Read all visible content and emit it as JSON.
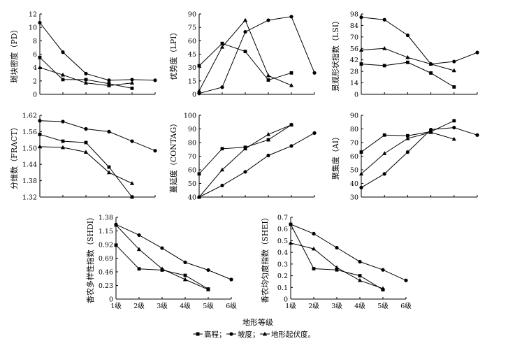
{
  "chart_data": [
    {
      "id": "pd",
      "type": "line",
      "ylabel": "斑块密度（PD）",
      "ylim": [
        0,
        12
      ],
      "yticks": [
        0,
        2,
        4,
        6,
        8,
        10,
        12
      ],
      "ytick_labels": [
        "0",
        "2",
        "4",
        "6",
        "8",
        "10",
        "12"
      ],
      "series": [
        {
          "name": "高程",
          "x": [
            1,
            2,
            3,
            4,
            5
          ],
          "values": [
            5.5,
            2.2,
            2.2,
            1.6,
            0.9
          ]
        },
        {
          "name": "坡度",
          "x": [
            1,
            2,
            3,
            4,
            5,
            6
          ],
          "values": [
            10.7,
            6.3,
            3.1,
            2.1,
            2.2,
            2.1
          ]
        },
        {
          "name": "地形起伏度",
          "x": [
            1,
            2,
            3,
            4,
            5
          ],
          "values": [
            4.0,
            2.9,
            1.7,
            1.3,
            1.7
          ]
        }
      ]
    },
    {
      "id": "lpi",
      "type": "line",
      "ylabel": "优势度（LPI）",
      "ylim": [
        0,
        90
      ],
      "yticks": [
        0,
        15,
        30,
        45,
        60,
        75,
        90
      ],
      "ytick_labels": [
        "0",
        "15",
        "30",
        "45",
        "60",
        "75",
        "90"
      ],
      "series": [
        {
          "name": "高程",
          "x": [
            1,
            2,
            3,
            4,
            5
          ],
          "values": [
            32,
            57,
            48,
            16,
            24
          ]
        },
        {
          "name": "坡度",
          "x": [
            1,
            2,
            3,
            4,
            5,
            6
          ],
          "values": [
            1,
            8,
            70,
            83,
            87,
            24
          ]
        },
        {
          "name": "地形起伏度",
          "x": [
            1,
            2,
            3,
            4,
            5
          ],
          "values": [
            4,
            53,
            83,
            21,
            10
          ]
        }
      ]
    },
    {
      "id": "lsi",
      "type": "line",
      "ylabel": "景观形状指数（LSI）",
      "ylim": [
        0,
        98
      ],
      "yticks": [
        0,
        14,
        28,
        42,
        56,
        70,
        84,
        98
      ],
      "ytick_labels": [
        "0",
        "14",
        "28",
        "42",
        "56",
        "70",
        "84",
        "98"
      ],
      "series": [
        {
          "name": "高程",
          "x": [
            1,
            2,
            3,
            4,
            5
          ],
          "values": [
            37,
            35,
            39,
            26,
            9
          ]
        },
        {
          "name": "坡度",
          "x": [
            1,
            2,
            3,
            4,
            5,
            6
          ],
          "values": [
            94,
            91,
            72,
            37,
            40,
            51
          ]
        },
        {
          "name": "地形起伏度",
          "x": [
            1,
            2,
            3,
            4,
            5
          ],
          "values": [
            54,
            56,
            45,
            37,
            29
          ]
        }
      ]
    },
    {
      "id": "fract",
      "type": "line",
      "ylabel": "分维数（FRACT）",
      "ylim": [
        1.32,
        1.62
      ],
      "yticks": [
        1.32,
        1.38,
        1.44,
        1.5,
        1.56,
        1.62
      ],
      "ytick_labels": [
        "1.32",
        "1.38",
        "1.44",
        "1.50",
        "1.56",
        "1.62"
      ],
      "series": [
        {
          "name": "高程",
          "x": [
            1,
            2,
            3,
            4,
            5
          ],
          "values": [
            1.55,
            1.525,
            1.52,
            1.43,
            1.32
          ]
        },
        {
          "name": "坡度",
          "x": [
            1,
            2,
            3,
            4,
            5,
            6
          ],
          "values": [
            1.6,
            1.597,
            1.57,
            1.56,
            1.525,
            1.49
          ]
        },
        {
          "name": "地形起伏度",
          "x": [
            1,
            2,
            3,
            4,
            5
          ],
          "values": [
            1.505,
            1.502,
            1.485,
            1.41,
            1.37
          ]
        }
      ]
    },
    {
      "id": "contag",
      "type": "line",
      "ylabel": "蔓延度（CONTAG）",
      "ylim": [
        40,
        100
      ],
      "yticks": [
        40,
        50,
        60,
        70,
        80,
        90,
        100
      ],
      "ytick_labels": [
        "40",
        "50",
        "60",
        "70",
        "80",
        "90",
        "100"
      ],
      "series": [
        {
          "name": "高程",
          "x": [
            1,
            2,
            3,
            4,
            5
          ],
          "values": [
            57,
            75.5,
            76.5,
            82,
            93
          ]
        },
        {
          "name": "坡度",
          "x": [
            1,
            2,
            3,
            4,
            5,
            6
          ],
          "values": [
            40,
            48.5,
            58.5,
            70.5,
            77.5,
            87
          ]
        },
        {
          "name": "地形起伏度",
          "x": [
            1,
            2,
            3,
            4,
            5
          ],
          "values": [
            40,
            60,
            75.5,
            86,
            93
          ]
        }
      ]
    },
    {
      "id": "ai",
      "type": "line",
      "ylabel": "聚集度（AI）",
      "ylim": [
        30,
        90
      ],
      "yticks": [
        30,
        40,
        50,
        60,
        70,
        80,
        90
      ],
      "ytick_labels": [
        "30",
        "40",
        "50",
        "60",
        "70",
        "80",
        "90"
      ],
      "series": [
        {
          "name": "高程",
          "x": [
            1,
            2,
            3,
            4,
            5
          ],
          "values": [
            63,
            75.5,
            75,
            78,
            86
          ]
        },
        {
          "name": "坡度",
          "x": [
            1,
            2,
            3,
            4,
            5,
            6
          ],
          "values": [
            37,
            47,
            63,
            79.5,
            81,
            75.5
          ]
        },
        {
          "name": "地形起伏度",
          "x": [
            1,
            2,
            3,
            4,
            5
          ],
          "values": [
            47,
            62,
            73,
            77.5,
            72.5
          ]
        }
      ]
    },
    {
      "id": "shdi",
      "type": "line",
      "ylabel": "香农多样性指数（SHDI）",
      "xlabel": "地形等级",
      "ylim": [
        0,
        1.38
      ],
      "yticks": [
        0,
        0.23,
        0.46,
        0.69,
        0.92,
        1.15,
        1.38
      ],
      "ytick_labels": [
        "0",
        "0.23",
        "0.46",
        "0.69",
        "0.92",
        "1.15",
        "1.38"
      ],
      "xtick_labels": [
        "1级",
        "2级",
        "3级",
        "4级",
        "5级",
        "6级"
      ],
      "series": [
        {
          "name": "高程",
          "x": [
            1,
            2,
            3,
            4,
            5
          ],
          "values": [
            0.91,
            0.51,
            0.49,
            0.4,
            0.17
          ]
        },
        {
          "name": "坡度",
          "x": [
            1,
            2,
            3,
            4,
            5,
            6
          ],
          "values": [
            1.26,
            1.08,
            0.86,
            0.62,
            0.49,
            0.33
          ]
        },
        {
          "name": "地形起伏度",
          "x": [
            1,
            2,
            3,
            4,
            5
          ],
          "values": [
            1.25,
            0.84,
            0.51,
            0.33,
            0.16
          ]
        }
      ]
    },
    {
      "id": "shei",
      "type": "line",
      "ylabel": "香农均匀度指数（SHEI）",
      "xlabel": "地形等级",
      "ylim": [
        0,
        0.7
      ],
      "yticks": [
        0,
        0.1,
        0.2,
        0.3,
        0.4,
        0.5,
        0.6,
        0.7
      ],
      "ytick_labels": [
        "0",
        "0.1",
        "0.2",
        "0.3",
        "0.4",
        "0.5",
        "0.6",
        "0.7"
      ],
      "xtick_labels": [
        "1级",
        "2级",
        "3级",
        "4级",
        "5级",
        "6级"
      ],
      "series": [
        {
          "name": "高程",
          "x": [
            1,
            2,
            3,
            4,
            5
          ],
          "values": [
            0.64,
            0.26,
            0.25,
            0.2,
            0.08
          ]
        },
        {
          "name": "坡度",
          "x": [
            1,
            2,
            3,
            4,
            5,
            6
          ],
          "values": [
            0.64,
            0.56,
            0.44,
            0.32,
            0.25,
            0.16
          ]
        },
        {
          "name": "地形起伏度",
          "x": [
            1,
            2,
            3,
            4,
            5
          ],
          "values": [
            0.48,
            0.43,
            0.27,
            0.16,
            0.09
          ]
        }
      ]
    }
  ],
  "legend": {
    "items": [
      {
        "series": "高程",
        "label": "高程；",
        "marker": "square"
      },
      {
        "series": "坡度",
        "label": "坡度；",
        "marker": "circle"
      },
      {
        "series": "地形起伏度",
        "label": "地形起伏度。",
        "marker": "triangle"
      }
    ]
  }
}
